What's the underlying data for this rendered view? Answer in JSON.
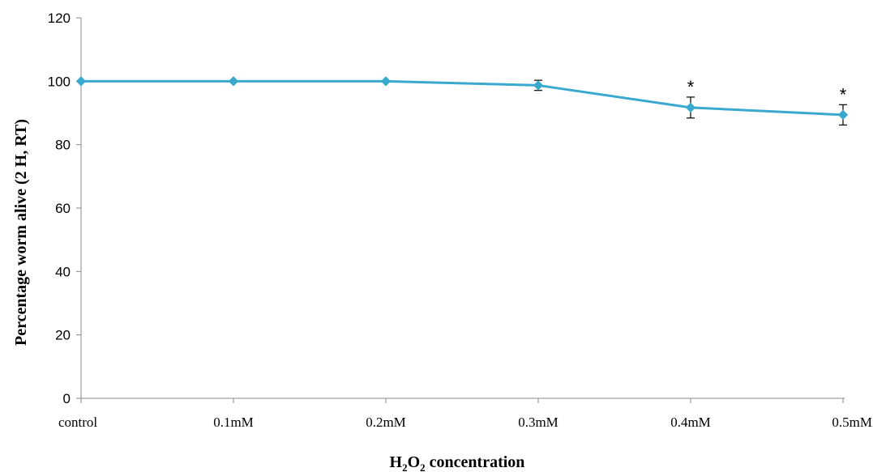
{
  "chart_data": {
    "type": "line",
    "categories": [
      "control",
      "0.1mM",
      "0.2mM",
      "0.3mM",
      "0.4mM",
      "0.5mM"
    ],
    "series": [
      {
        "values": [
          100,
          100,
          100,
          98.7,
          91.7,
          89.4
        ],
        "errors": [
          0,
          0,
          0,
          1.6,
          3.3,
          3.2
        ],
        "color": "#3aa9cf",
        "marker": "diamond"
      }
    ],
    "annotations": [
      {
        "category": "0.4mM",
        "text": "*"
      },
      {
        "category": "0.5mM",
        "text": "*"
      }
    ],
    "ylabel": "Percentage  worm alive (2 H, RT)",
    "xlabel": {
      "parts": [
        {
          "text": "H",
          "sub": false
        },
        {
          "text": "2",
          "sub": true
        },
        {
          "text": "O",
          "sub": false
        },
        {
          "text": "2",
          "sub": true
        },
        {
          "text": " concentration",
          "sub": false
        }
      ]
    },
    "ylim": [
      0,
      120
    ],
    "yticks": [
      "0",
      "20",
      "40",
      "60",
      "80",
      "100",
      "120"
    ],
    "grid": false,
    "legend": "none"
  }
}
